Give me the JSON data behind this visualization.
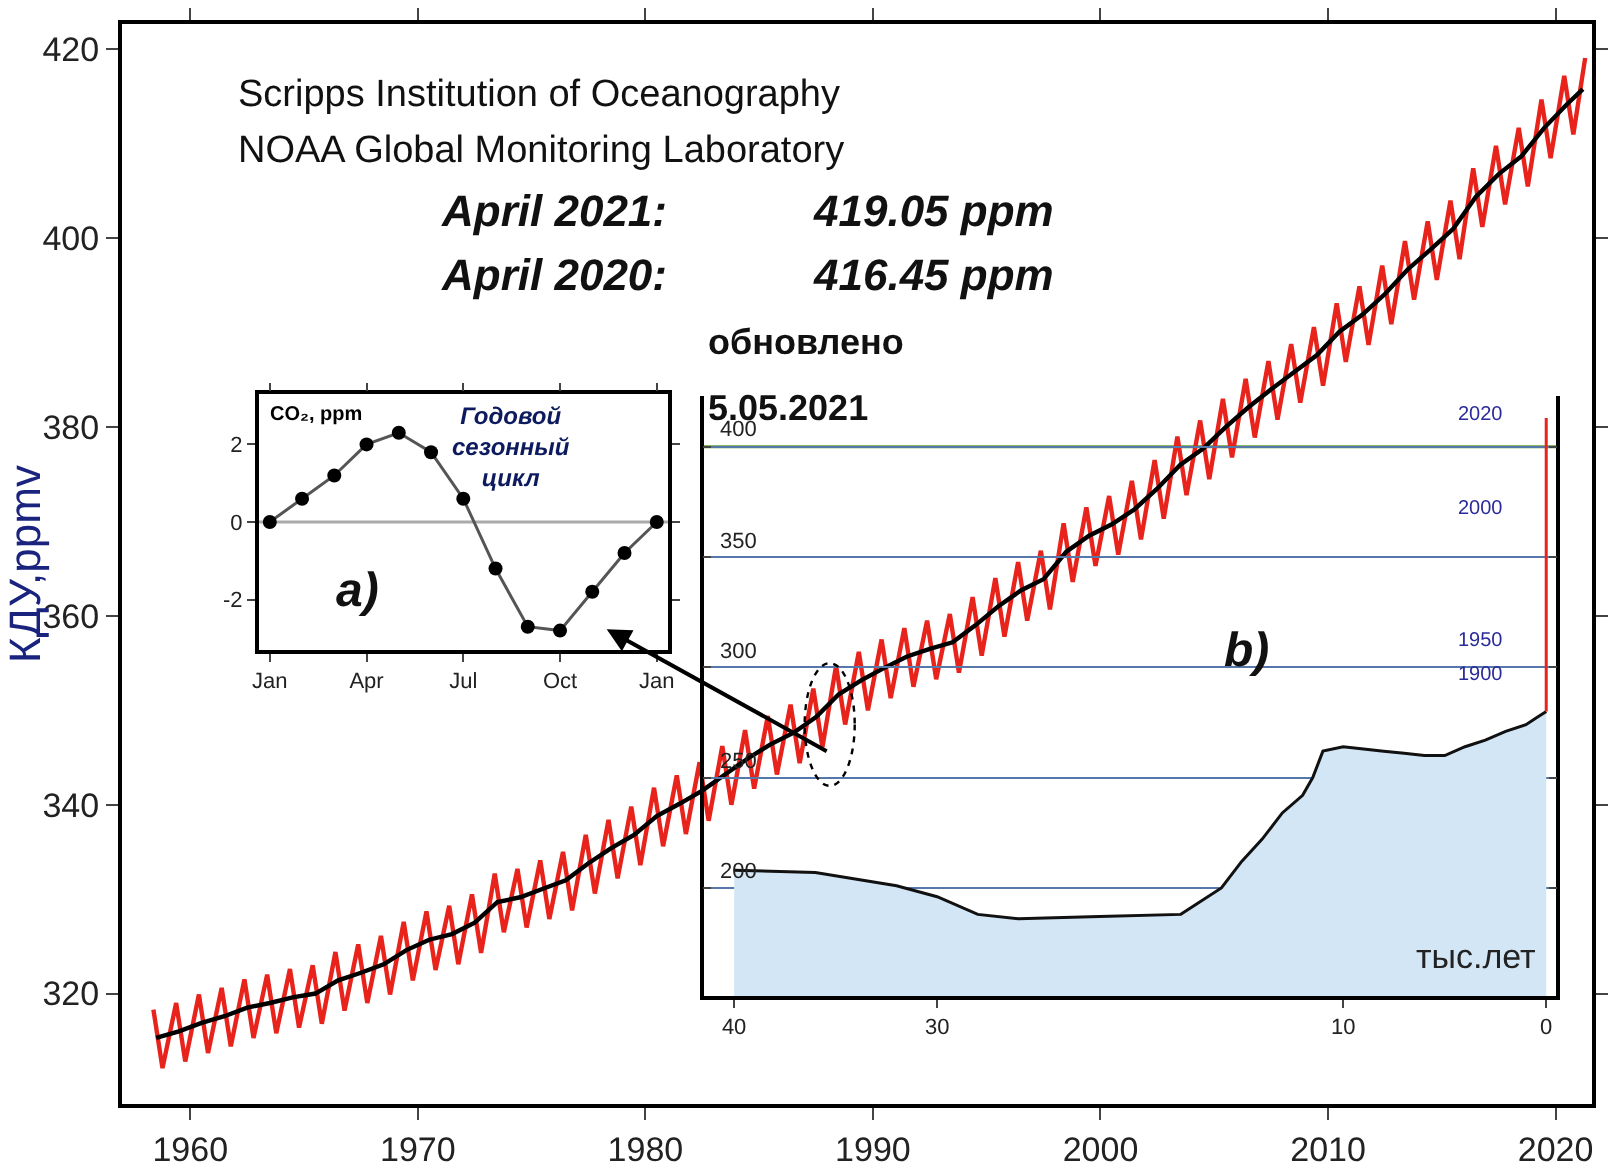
{
  "chart_data": [
    {
      "type": "line",
      "ylabel": "КДУ,ppmv",
      "xlim": [
        1957.0,
        2021.6
      ],
      "ylim": [
        308.3,
        422.7
      ],
      "xticks": [
        1960,
        1970,
        1980,
        1990,
        2000,
        2010,
        2020
      ],
      "yticks": [
        320,
        340,
        360,
        380,
        400,
        420
      ],
      "annotations": [
        "Scripps Institution of Oceanography",
        "NOAA Global Monitoring Laboratory",
        "April 2021:",
        "419.05 ppm",
        "April 2020:",
        "416.45 ppm",
        "обновлено",
        "5.05.2021"
      ],
      "series": [
        {
          "color": "#e8231c",
          "x": [
            1958.38,
            1958.78,
            1959.38,
            1959.78,
            1960.38,
            1960.78,
            1961.38,
            1961.78,
            1962.38,
            1962.78,
            1963.38,
            1963.78,
            1964.38,
            1964.78,
            1965.38,
            1965.78,
            1966.38,
            1966.78,
            1967.38,
            1967.78,
            1968.38,
            1968.78,
            1969.38,
            1969.78,
            1970.38,
            1970.78,
            1971.38,
            1971.78,
            1972.38,
            1972.78,
            1973.38,
            1973.78,
            1974.38,
            1974.78,
            1975.38,
            1975.78,
            1976.38,
            1976.78,
            1977.38,
            1977.78,
            1978.38,
            1978.78,
            1979.38,
            1979.78,
            1980.38,
            1980.78,
            1981.38,
            1981.78,
            1982.38,
            1982.78,
            1983.38,
            1983.78,
            1984.38,
            1984.78,
            1985.38,
            1985.78,
            1986.38,
            1986.78,
            1987.38,
            1987.78,
            1988.38,
            1988.78,
            1989.38,
            1989.78,
            1990.38,
            1990.78,
            1991.38,
            1991.78,
            1992.38,
            1992.78,
            1993.38,
            1993.78,
            1994.38,
            1994.78,
            1995.38,
            1995.78,
            1996.38,
            1996.78,
            1997.38,
            1997.78,
            1998.38,
            1998.78,
            1999.38,
            1999.78,
            2000.38,
            2000.78,
            2001.38,
            2001.78,
            2002.38,
            2002.78,
            2003.38,
            2003.78,
            2004.38,
            2004.78,
            2005.38,
            2005.78,
            2006.38,
            2006.78,
            2007.38,
            2007.78,
            2008.38,
            2008.78,
            2009.38,
            2009.78,
            2010.38,
            2010.78,
            2011.38,
            2011.78,
            2012.38,
            2012.78,
            2013.38,
            2013.78,
            2014.38,
            2014.78,
            2015.38,
            2015.78,
            2016.38,
            2016.78,
            2017.38,
            2017.78,
            2018.38,
            2018.78,
            2019.38,
            2019.78,
            2020.38,
            2020.78,
            2021.3
          ],
          "values": [
            318.3,
            312.1,
            319.0,
            312.8,
            319.9,
            313.7,
            320.6,
            314.4,
            321.5,
            315.3,
            322.0,
            315.8,
            322.6,
            316.4,
            323.0,
            316.8,
            324.4,
            318.2,
            325.2,
            319.0,
            326.1,
            319.9,
            327.6,
            321.4,
            328.7,
            322.5,
            329.3,
            323.1,
            330.5,
            324.3,
            332.7,
            326.5,
            333.2,
            327.0,
            334.1,
            327.9,
            335.0,
            328.8,
            336.8,
            330.6,
            338.4,
            332.2,
            339.8,
            333.6,
            341.8,
            335.6,
            343.1,
            336.9,
            344.5,
            338.3,
            346.2,
            340.0,
            347.9,
            341.7,
            349.4,
            343.2,
            350.6,
            344.4,
            352.3,
            346.1,
            354.7,
            348.5,
            356.2,
            350.0,
            357.5,
            351.3,
            358.7,
            352.5,
            359.5,
            353.3,
            360.2,
            354.0,
            362.0,
            355.8,
            364.0,
            357.8,
            365.7,
            359.5,
            366.9,
            360.7,
            369.8,
            363.6,
            371.5,
            365.3,
            372.7,
            366.5,
            374.3,
            368.1,
            376.5,
            370.3,
            379.0,
            372.8,
            380.7,
            374.5,
            383.0,
            376.8,
            385.1,
            378.9,
            387.0,
            380.8,
            388.8,
            382.6,
            390.6,
            384.4,
            393.1,
            386.9,
            394.9,
            388.7,
            397.1,
            390.9,
            399.7,
            393.5,
            401.8,
            395.6,
            404.0,
            397.8,
            407.4,
            401.2,
            409.8,
            403.6,
            411.7,
            405.5,
            414.7,
            408.5,
            417.2,
            411.0,
            419.1
          ]
        },
        {
          "color": "#000000",
          "x": [
            1958.5,
            1959.5,
            1960.5,
            1961.5,
            1962.5,
            1963.5,
            1964.5,
            1965.5,
            1966.5,
            1967.5,
            1968.5,
            1969.5,
            1970.5,
            1971.5,
            1972.5,
            1973.5,
            1974.5,
            1975.5,
            1976.5,
            1977.5,
            1978.5,
            1979.5,
            1980.5,
            1981.5,
            1982.5,
            1983.5,
            1984.5,
            1985.5,
            1986.5,
            1987.5,
            1988.5,
            1989.5,
            1990.5,
            1991.5,
            1992.5,
            1993.5,
            1994.5,
            1995.5,
            1996.5,
            1997.5,
            1998.5,
            1999.5,
            2000.5,
            2001.5,
            2002.5,
            2003.5,
            2004.5,
            2005.5,
            2006.5,
            2007.5,
            2008.5,
            2009.5,
            2010.5,
            2011.5,
            2012.5,
            2013.5,
            2014.5,
            2015.5,
            2016.5,
            2017.5,
            2018.5,
            2019.5,
            2020.5,
            2021.2
          ],
          "values": [
            315.3,
            316.0,
            316.9,
            317.6,
            318.5,
            319.0,
            319.6,
            320.0,
            321.4,
            322.2,
            323.1,
            324.6,
            325.7,
            326.3,
            327.5,
            329.7,
            330.2,
            331.1,
            332.0,
            333.8,
            335.4,
            336.8,
            338.8,
            340.1,
            341.5,
            343.2,
            344.9,
            346.4,
            347.6,
            349.3,
            351.7,
            353.2,
            354.5,
            355.7,
            356.5,
            357.2,
            359.0,
            361.0,
            362.7,
            363.9,
            366.8,
            368.5,
            369.7,
            371.3,
            373.5,
            376.0,
            377.7,
            380.0,
            382.1,
            384.0,
            385.8,
            387.6,
            390.1,
            391.9,
            394.1,
            396.7,
            398.8,
            401.0,
            404.4,
            406.8,
            408.7,
            411.7,
            414.2,
            415.8
          ]
        }
      ]
    },
    {
      "type": "line",
      "ylabel": "CO₂, ppm",
      "marker": "circle",
      "ylim": [
        -3.3,
        3.3
      ],
      "categories": [
        "Jan",
        null,
        null,
        "Apr",
        null,
        null,
        "Jul",
        null,
        null,
        "Oct",
        null,
        null,
        "Jan"
      ],
      "yticks": [
        -2,
        0,
        2
      ],
      "ref_lines": [
        {
          "axis": "y",
          "value": 0,
          "color": "#aaaaaa"
        }
      ],
      "annotations": [
        "Годовой сезонный цикл",
        "a)"
      ],
      "series": [
        {
          "color": "#555555",
          "values": [
            0,
            0.6,
            1.2,
            2.0,
            2.3,
            1.8,
            0.6,
            -1.2,
            -2.7,
            -2.8,
            -1.8,
            -0.8,
            0
          ]
        }
      ]
    },
    {
      "type": "area",
      "xlabel": "тыс.лет",
      "xlim": [
        41.5,
        -0.5
      ],
      "ylim": [
        151,
        423
      ],
      "xticks": [
        40,
        30,
        10,
        0
      ],
      "yticks": [
        200,
        250,
        300,
        350,
        400
      ],
      "grid": "y",
      "ref_lines": [
        {
          "axis": "y",
          "value": 400,
          "color": "#5aa02c"
        }
      ],
      "annotations": [
        "b)",
        "2020",
        "2000",
        "1950",
        "1900"
      ],
      "series": [
        {
          "color": "#d3e6f6",
          "x": [
            40,
            36,
            32,
            30,
            28,
            26,
            22,
            18,
            16,
            15,
            14,
            13,
            12,
            11.5,
            11,
            10,
            9,
            8,
            7,
            6,
            5,
            4,
            3,
            2,
            1,
            0.5,
            0
          ],
          "values": [
            208,
            207,
            201,
            196,
            188,
            186,
            187,
            188,
            200,
            212,
            222,
            234,
            242,
            250,
            262,
            264,
            263,
            262,
            261,
            260,
            260,
            264,
            267,
            271,
            274,
            277,
            280
          ]
        },
        {
          "type": "line",
          "color": "#e8231c",
          "x": [
            0,
            0
          ],
          "values": [
            280,
            413
          ]
        }
      ]
    }
  ]
}
